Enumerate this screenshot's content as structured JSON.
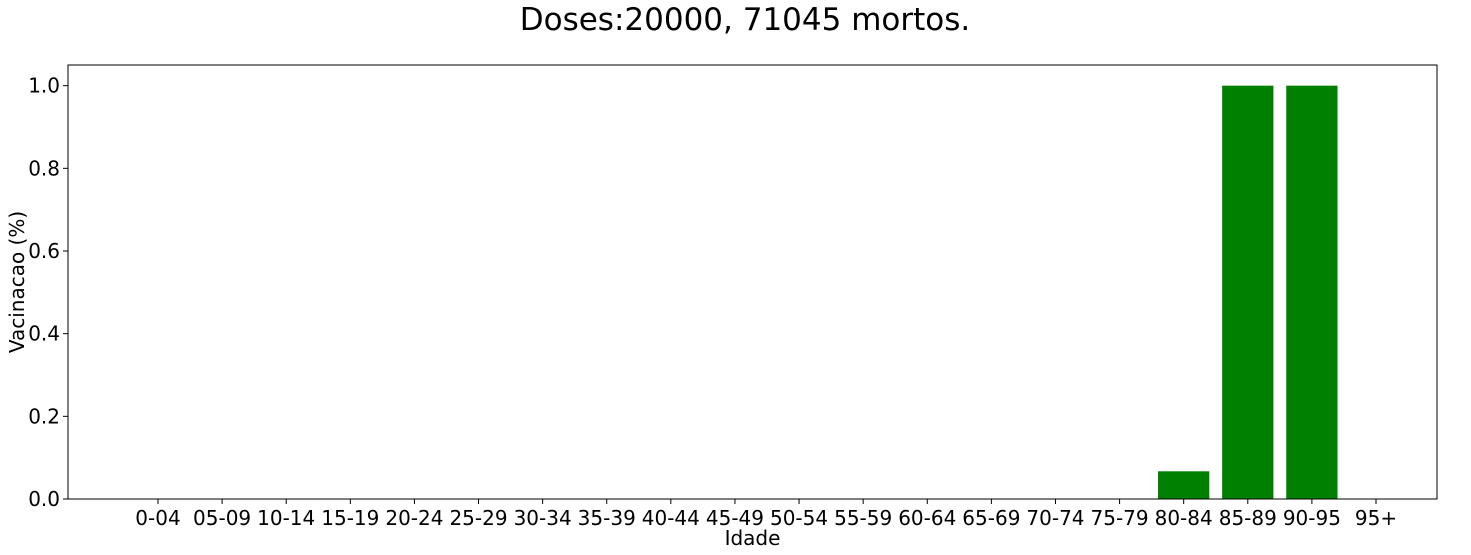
{
  "chart_data": {
    "type": "bar",
    "title": "Doses:20000, 71045 mortos.",
    "xlabel": "Idade",
    "ylabel": "Vacinacao (%)",
    "categories": [
      "0-04",
      "05-09",
      "10-14",
      "15-19",
      "20-24",
      "25-29",
      "30-34",
      "35-39",
      "40-44",
      "45-49",
      "50-54",
      "55-59",
      "60-64",
      "65-69",
      "70-74",
      "75-79",
      "80-84",
      "85-89",
      "90-95",
      "95+"
    ],
    "values": [
      0,
      0,
      0,
      0,
      0,
      0,
      0,
      0,
      0,
      0,
      0,
      0,
      0,
      0,
      0,
      0,
      0.067,
      1.0,
      1.0,
      0
    ],
    "yticks": [
      "0.0",
      "0.2",
      "0.4",
      "0.6",
      "0.8",
      "1.0"
    ],
    "ylim": [
      0,
      1.05
    ],
    "grid": false,
    "bar_color": "#008000"
  }
}
